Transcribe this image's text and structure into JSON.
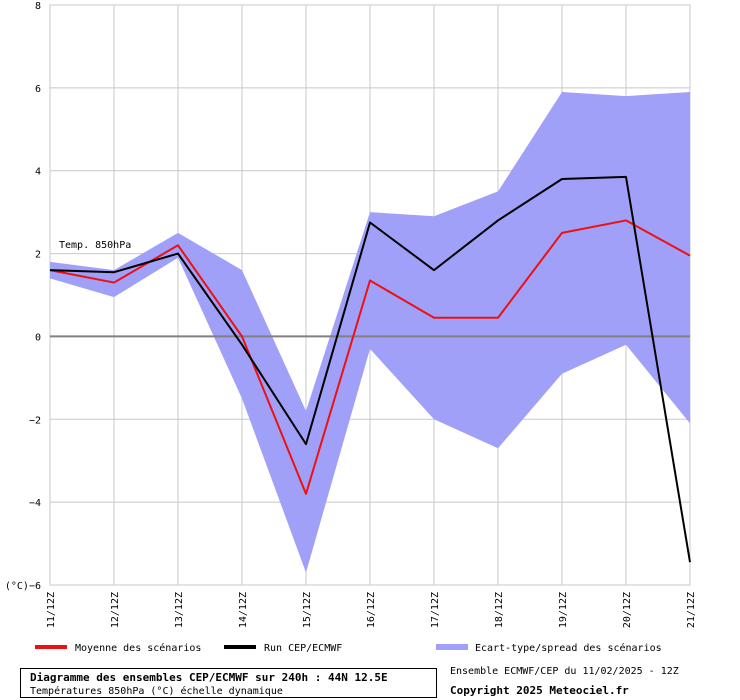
{
  "chart_data": {
    "type": "line",
    "categories": [
      "11/12Z",
      "12/12Z",
      "13/12Z",
      "14/12Z",
      "15/12Z",
      "16/12Z",
      "17/12Z",
      "18/12Z",
      "19/12Z",
      "20/12Z",
      "21/12Z"
    ],
    "ylim": [
      -6,
      8
    ],
    "yticks": [
      -6,
      -4,
      -2,
      0,
      2,
      4,
      6,
      8
    ],
    "ytick_labels": [
      "(°C)−6",
      "−4",
      "−2",
      "0",
      "2",
      "4",
      "6",
      "8"
    ],
    "grid": true,
    "annotation": "Temp. 850hPa",
    "spread": {
      "name": "Ecart-type/spread des scénarios",
      "color": "#a0a0f8",
      "upper": [
        1.8,
        1.6,
        2.5,
        1.6,
        -1.8,
        3.0,
        2.9,
        3.5,
        5.9,
        5.8,
        5.9
      ],
      "lower": [
        1.4,
        0.95,
        1.9,
        -1.5,
        -5.7,
        -0.3,
        -2.0,
        -2.7,
        -0.9,
        -0.2,
        -2.1
      ]
    },
    "series": [
      {
        "name": "Moyenne des scénarios",
        "color": "#ee1010",
        "values": [
          1.6,
          1.3,
          2.2,
          0.0,
          -3.8,
          1.35,
          0.45,
          0.45,
          2.5,
          2.8,
          1.95
        ]
      },
      {
        "name": "Run CEP/ECMWF",
        "color": "#000000",
        "values": [
          1.6,
          1.55,
          2.0,
          -0.2,
          -2.6,
          2.75,
          1.6,
          2.8,
          3.8,
          3.85,
          -5.45
        ]
      }
    ]
  },
  "footer": {
    "title": "Diagramme des ensembles CEP/ECMWF sur 240h : 44N 12.5E",
    "subtitle": "Températures 850hPa (°C) échelle dynamique",
    "ensemble_info": "Ensemble ECMWF/CEP du 11/02/2025 - 12Z",
    "copyright": "Copyright 2025 Meteociel.fr"
  }
}
